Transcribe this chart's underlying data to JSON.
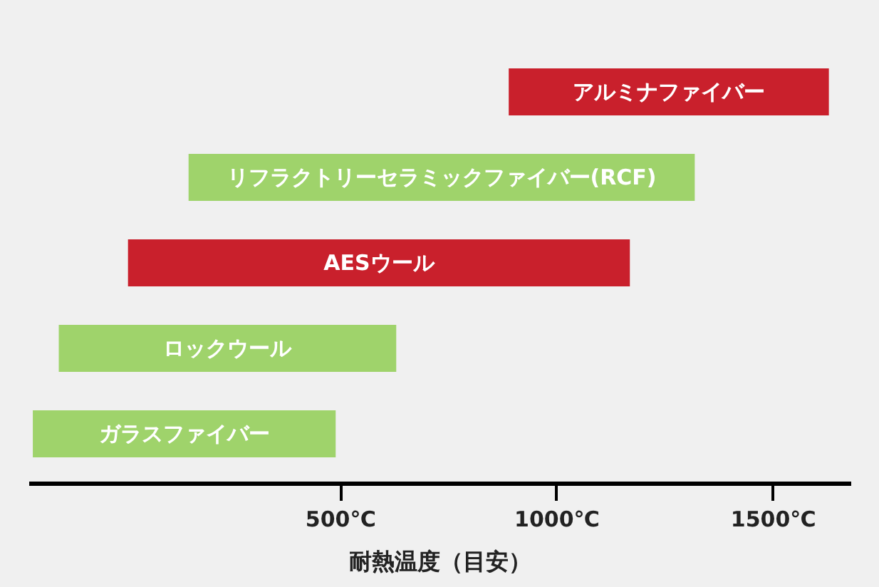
{
  "chart_data": {
    "type": "bar",
    "orientation": "horizontal",
    "categories": [
      "アルミナファイバー",
      "リフラクトリーセラミックファイバー(RCF)",
      "AESウール",
      "ロックウール",
      "ガラスファイバー"
    ],
    "base": [
      890,
      150,
      10,
      -150,
      -210
    ],
    "values": [
      740,
      1170,
      1160,
      780,
      700
    ],
    "colors": [
      "#c9202c",
      "#9fd36b",
      "#c9202c",
      "#9fd36b",
      "#9fd36b"
    ],
    "xlim": [
      -220,
      1680
    ],
    "xticks": [
      {
        "value": 500,
        "label": "500℃"
      },
      {
        "value": 1000,
        "label": "1000℃"
      },
      {
        "value": 1500,
        "label": "1500℃"
      }
    ],
    "xlabel": "耐熱温度（目安）",
    "tick_labels": "x",
    "grid": false
  }
}
